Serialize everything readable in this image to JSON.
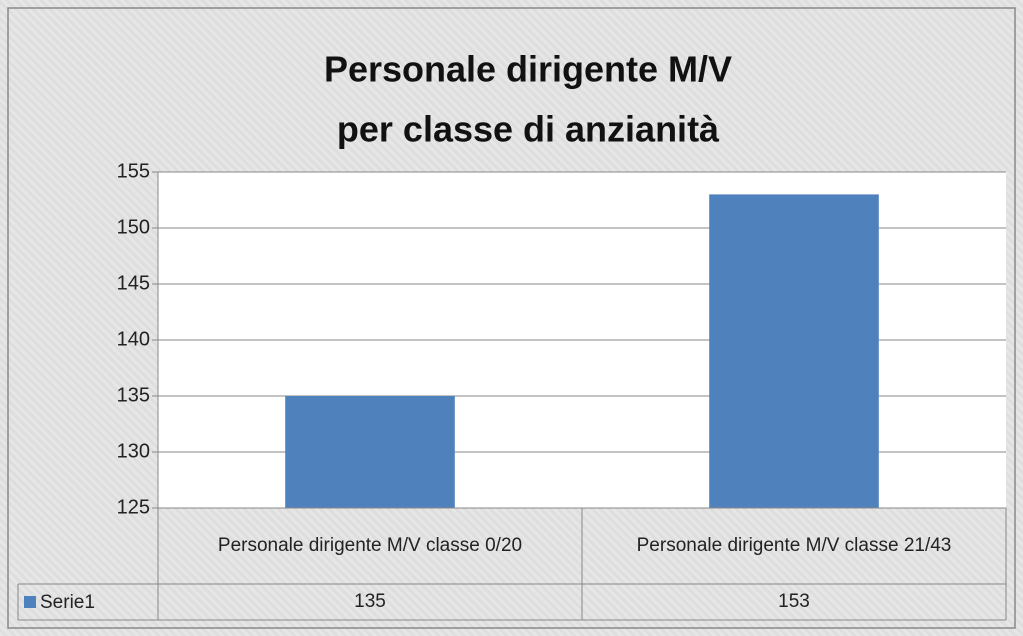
{
  "chart_data": {
    "type": "bar",
    "title": [
      "Personale dirigente M/V",
      "per classe di anzianità"
    ],
    "categories": [
      "Personale dirigente M/V  classe 0/20",
      "Personale dirigente M/V  classe 21/43"
    ],
    "series": [
      {
        "name": "Serie1",
        "color": "#4f81bd",
        "values": [
          135,
          153
        ]
      }
    ],
    "ylim": [
      125,
      155
    ],
    "yticks": [
      125,
      130,
      135,
      140,
      145,
      150,
      155
    ],
    "grid": true
  }
}
